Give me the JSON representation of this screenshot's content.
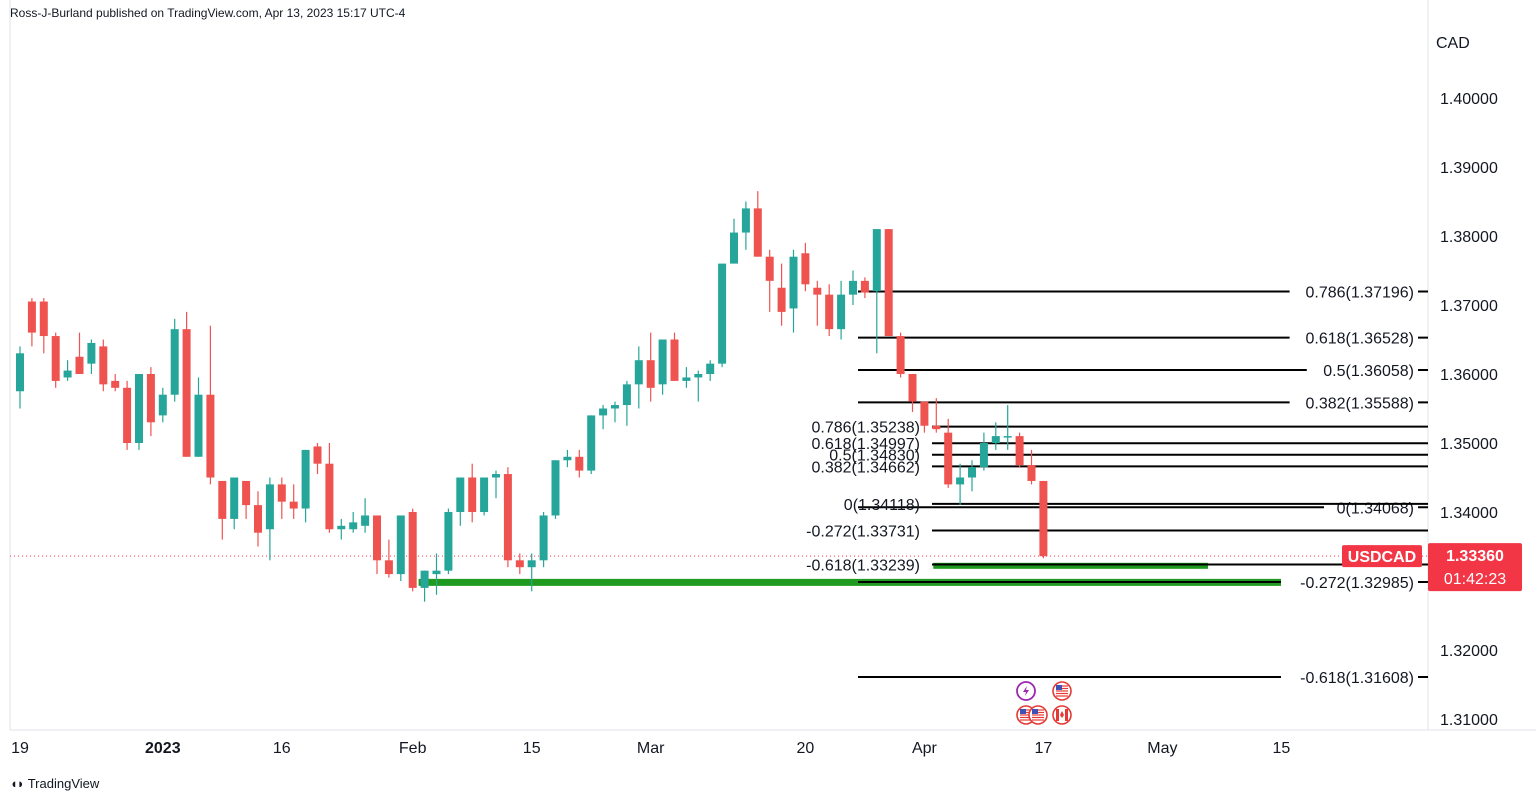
{
  "header": {
    "text": "Ross-J-Burland published on TradingView.com, Apr 13, 2023 15:17 UTC-4"
  },
  "footer": {
    "text": "TradingView",
    "logo": "tradingview-logo-icon"
  },
  "colors": {
    "up": "#26a69a",
    "down": "#ef5350",
    "green_zone": "#1e9a1e",
    "line": "#000000",
    "tag": "#f23645"
  },
  "chart_data": {
    "type": "candlestick",
    "symbol": "USDCAD",
    "currency_label": "CAD",
    "ylim": [
      1.307,
      1.411
    ],
    "y_ticks": [
      "1.40000",
      "1.39000",
      "1.38000",
      "1.37000",
      "1.36000",
      "1.35000",
      "1.34000",
      "1.33000",
      "1.32000",
      "1.31000"
    ],
    "x_ticks": [
      "19",
      "2023",
      "16",
      "Feb",
      "15",
      "Mar",
      "20",
      "Apr",
      "17",
      "May",
      "15"
    ],
    "x_tick_bar_index": [
      0,
      12,
      22,
      33,
      43,
      53,
      66,
      76,
      86,
      96,
      106
    ],
    "last_price": {
      "symbol": "USDCAD",
      "value": "1.33360",
      "countdown": "01:42:23",
      "price": 1.3336
    },
    "candles": [
      [
        1.3575,
        1.364,
        1.355,
        1.363
      ],
      [
        1.3705,
        1.371,
        1.364,
        1.366
      ],
      [
        1.3705,
        1.371,
        1.363,
        1.3655
      ],
      [
        1.3655,
        1.366,
        1.358,
        1.359
      ],
      [
        1.3595,
        1.362,
        1.359,
        1.3605
      ],
      [
        1.3625,
        1.366,
        1.36,
        1.36
      ],
      [
        1.3615,
        1.365,
        1.36,
        1.3645
      ],
      [
        1.364,
        1.365,
        1.3575,
        1.3585
      ],
      [
        1.359,
        1.36,
        1.3575,
        1.358
      ],
      [
        1.358,
        1.359,
        1.349,
        1.35
      ],
      [
        1.35,
        1.36,
        1.349,
        1.36
      ],
      [
        1.36,
        1.361,
        1.351,
        1.353
      ],
      [
        1.354,
        1.358,
        1.353,
        1.357
      ],
      [
        1.357,
        1.368,
        1.356,
        1.3665
      ],
      [
        1.3665,
        1.369,
        1.348,
        1.348
      ],
      [
        1.348,
        1.3595,
        1.348,
        1.357
      ],
      [
        1.357,
        1.367,
        1.344,
        1.345
      ],
      [
        1.3445,
        1.3445,
        1.336,
        1.339
      ],
      [
        1.339,
        1.3445,
        1.3375,
        1.345
      ],
      [
        1.3445,
        1.3445,
        1.339,
        1.341
      ],
      [
        1.341,
        1.343,
        1.335,
        1.337
      ],
      [
        1.3375,
        1.345,
        1.333,
        1.344
      ],
      [
        1.344,
        1.345,
        1.339,
        1.3415
      ],
      [
        1.3415,
        1.344,
        1.339,
        1.3405
      ],
      [
        1.3405,
        1.349,
        1.3385,
        1.349
      ],
      [
        1.3495,
        1.35,
        1.3455,
        1.347
      ],
      [
        1.347,
        1.35,
        1.337,
        1.3375
      ],
      [
        1.3375,
        1.339,
        1.336,
        1.338
      ],
      [
        1.3375,
        1.34,
        1.337,
        1.3385
      ],
      [
        1.338,
        1.342,
        1.337,
        1.3395
      ],
      [
        1.3395,
        1.3395,
        1.331,
        1.333
      ],
      [
        1.333,
        1.336,
        1.3305,
        1.331
      ],
      [
        1.331,
        1.339,
        1.33,
        1.3395
      ],
      [
        1.34,
        1.3405,
        1.3285,
        1.329
      ],
      [
        1.329,
        1.3315,
        1.327,
        1.3315
      ],
      [
        1.331,
        1.334,
        1.328,
        1.3315
      ],
      [
        1.3315,
        1.3405,
        1.331,
        1.34
      ],
      [
        1.34,
        1.345,
        1.338,
        1.345
      ],
      [
        1.345,
        1.347,
        1.3385,
        1.34
      ],
      [
        1.34,
        1.345,
        1.3395,
        1.345
      ],
      [
        1.345,
        1.346,
        1.342,
        1.3455
      ],
      [
        1.3455,
        1.3465,
        1.332,
        1.333
      ],
      [
        1.333,
        1.334,
        1.331,
        1.332
      ],
      [
        1.332,
        1.334,
        1.3285,
        1.333
      ],
      [
        1.333,
        1.34,
        1.332,
        1.3395
      ],
      [
        1.3395,
        1.3475,
        1.339,
        1.3475
      ],
      [
        1.3475,
        1.349,
        1.3465,
        1.348
      ],
      [
        1.348,
        1.349,
        1.345,
        1.346
      ],
      [
        1.346,
        1.354,
        1.3455,
        1.354
      ],
      [
        1.354,
        1.3555,
        1.352,
        1.355
      ],
      [
        1.355,
        1.356,
        1.353,
        1.3555
      ],
      [
        1.3555,
        1.359,
        1.3525,
        1.3585
      ],
      [
        1.3585,
        1.364,
        1.355,
        1.362
      ],
      [
        1.362,
        1.366,
        1.356,
        1.358
      ],
      [
        1.3585,
        1.365,
        1.357,
        1.365
      ],
      [
        1.365,
        1.366,
        1.359,
        1.359
      ],
      [
        1.359,
        1.361,
        1.358,
        1.3595
      ],
      [
        1.3595,
        1.3605,
        1.356,
        1.36
      ],
      [
        1.36,
        1.362,
        1.359,
        1.3615
      ],
      [
        1.3615,
        1.376,
        1.361,
        1.376
      ],
      [
        1.376,
        1.3825,
        1.376,
        1.3805
      ],
      [
        1.3805,
        1.385,
        1.378,
        1.384
      ],
      [
        1.384,
        1.3865,
        1.377,
        1.377
      ],
      [
        1.377,
        1.378,
        1.369,
        1.3735
      ],
      [
        1.3725,
        1.376,
        1.367,
        1.369
      ],
      [
        1.3695,
        1.378,
        1.366,
        1.377
      ],
      [
        1.3775,
        1.379,
        1.372,
        1.373
      ],
      [
        1.3725,
        1.3735,
        1.367,
        1.3715
      ],
      [
        1.3715,
        1.373,
        1.3655,
        1.3665
      ],
      [
        1.3665,
        1.3735,
        1.365,
        1.3715
      ],
      [
        1.3715,
        1.375,
        1.37,
        1.3735
      ],
      [
        1.3735,
        1.374,
        1.371,
        1.3718
      ],
      [
        1.372,
        1.381,
        1.363,
        1.381
      ],
      [
        1.381,
        1.381,
        1.3655,
        1.3655
      ],
      [
        1.3655,
        1.366,
        1.3595,
        1.36
      ],
      [
        1.36,
        1.36,
        1.3545,
        1.356
      ],
      [
        1.356,
        1.356,
        1.3515,
        1.3525
      ],
      [
        1.3525,
        1.3565,
        1.3515,
        1.352
      ],
      [
        1.3515,
        1.3535,
        1.3435,
        1.344
      ],
      [
        1.344,
        1.347,
        1.341,
        1.345
      ],
      [
        1.345,
        1.3475,
        1.343,
        1.3465
      ],
      [
        1.3465,
        1.3515,
        1.346,
        1.35
      ],
      [
        1.35,
        1.353,
        1.349,
        1.351
      ],
      [
        1.351,
        1.3555,
        1.349,
        1.351
      ],
      [
        1.351,
        1.3515,
        1.3465,
        1.3468
      ],
      [
        1.3468,
        1.349,
        1.344,
        1.3445
      ],
      [
        1.3445,
        1.3445,
        1.3333,
        1.3336
      ]
    ],
    "fibonacci_sets": [
      {
        "name": "outer",
        "text_align": "right",
        "levels": [
          {
            "label": "0.786(1.37196)",
            "price": 1.37196
          },
          {
            "label": "0.618(1.36528)",
            "price": 1.36528
          },
          {
            "label": "0.5(1.36058)",
            "price": 1.36058
          },
          {
            "label": "0.382(1.35588)",
            "price": 1.35588
          },
          {
            "label": "0(1.34068)",
            "price": 1.34068
          },
          {
            "label": "-0.272(1.32985)",
            "price": 1.32985
          },
          {
            "label": "-0.618(1.31608)",
            "price": 1.31608
          }
        ]
      },
      {
        "name": "inner",
        "text_align": "left",
        "levels": [
          {
            "label": "0.786(1.35238)",
            "price": 1.35238
          },
          {
            "label": "0.618(1.34997)",
            "price": 1.34997
          },
          {
            "label": "0.5(1.34830)",
            "price": 1.3483
          },
          {
            "label": "0.382(1.34662)",
            "price": 1.34662
          },
          {
            "label": "0(1.34118)",
            "price": 1.34118
          },
          {
            "label": "-0.272(1.33731)",
            "price": 1.33731
          },
          {
            "label": "-0.618(1.33239)",
            "price": 1.33239
          }
        ]
      }
    ],
    "zones": [
      {
        "name": "support-zone-upper",
        "price": 1.3322
      },
      {
        "name": "support-zone-lower",
        "price": 1.3298
      }
    ],
    "event_icons": [
      "lightning-icon",
      "us-flag-icon",
      "us-flag-icon",
      "us-flag-icon",
      "canada-flag-icon"
    ]
  }
}
